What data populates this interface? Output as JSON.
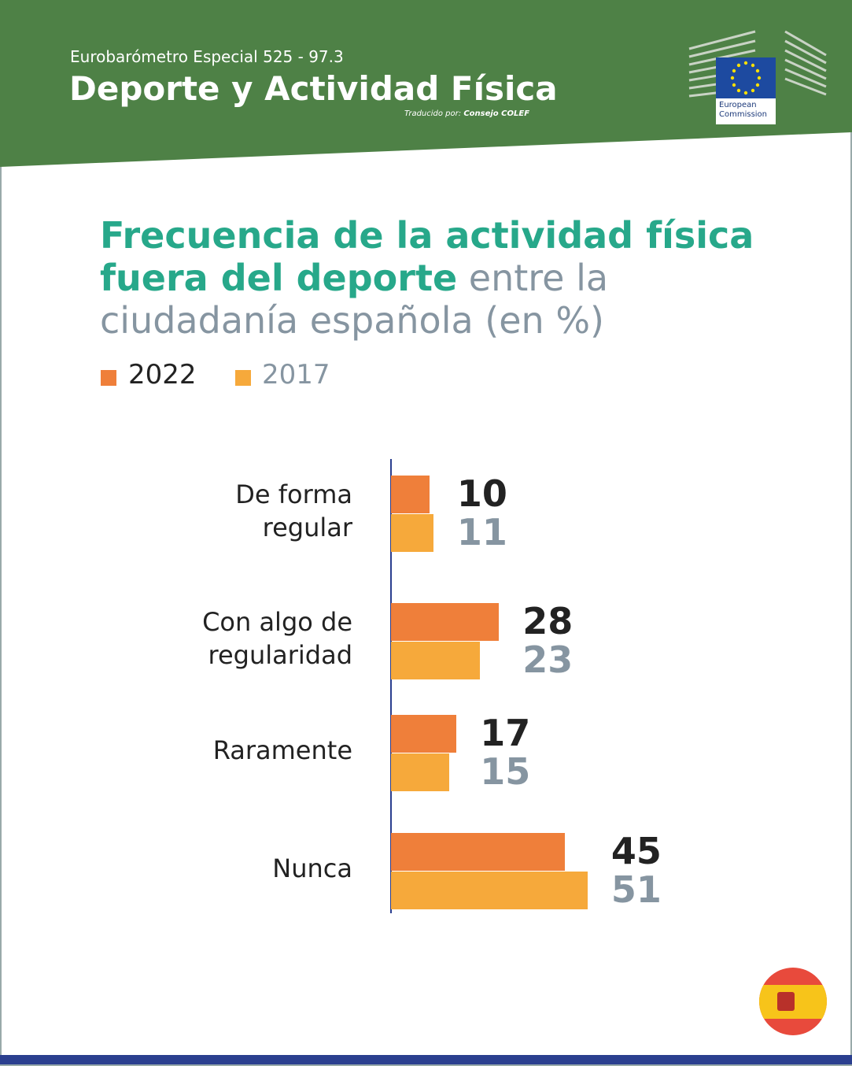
{
  "header": {
    "series_label": "Eurobarómetro Especial 525 - 97.3",
    "title": "Deporte y Actividad Física",
    "credit_prefix": "Traducido por:",
    "credit_name": "Consejo COLEF",
    "logo_text": "European Commission"
  },
  "chart_data": {
    "type": "hbar",
    "title_highlight": "Frecuencia de la actividad física fuera del deporte",
    "title_rest": "entre la ciudadanía española (en %)",
    "categories": [
      "De forma regular",
      "Con algo de regularidad",
      "Raramente",
      "Nunca"
    ],
    "series": [
      {
        "name": "2022",
        "color": "#ef7f3a",
        "label_color": "#222222",
        "values": [
          10,
          28,
          17,
          45
        ]
      },
      {
        "name": "2017",
        "color": "#f6a93b",
        "label_color": "#8695a1",
        "values": [
          11,
          23,
          15,
          51
        ]
      }
    ]
  }
}
